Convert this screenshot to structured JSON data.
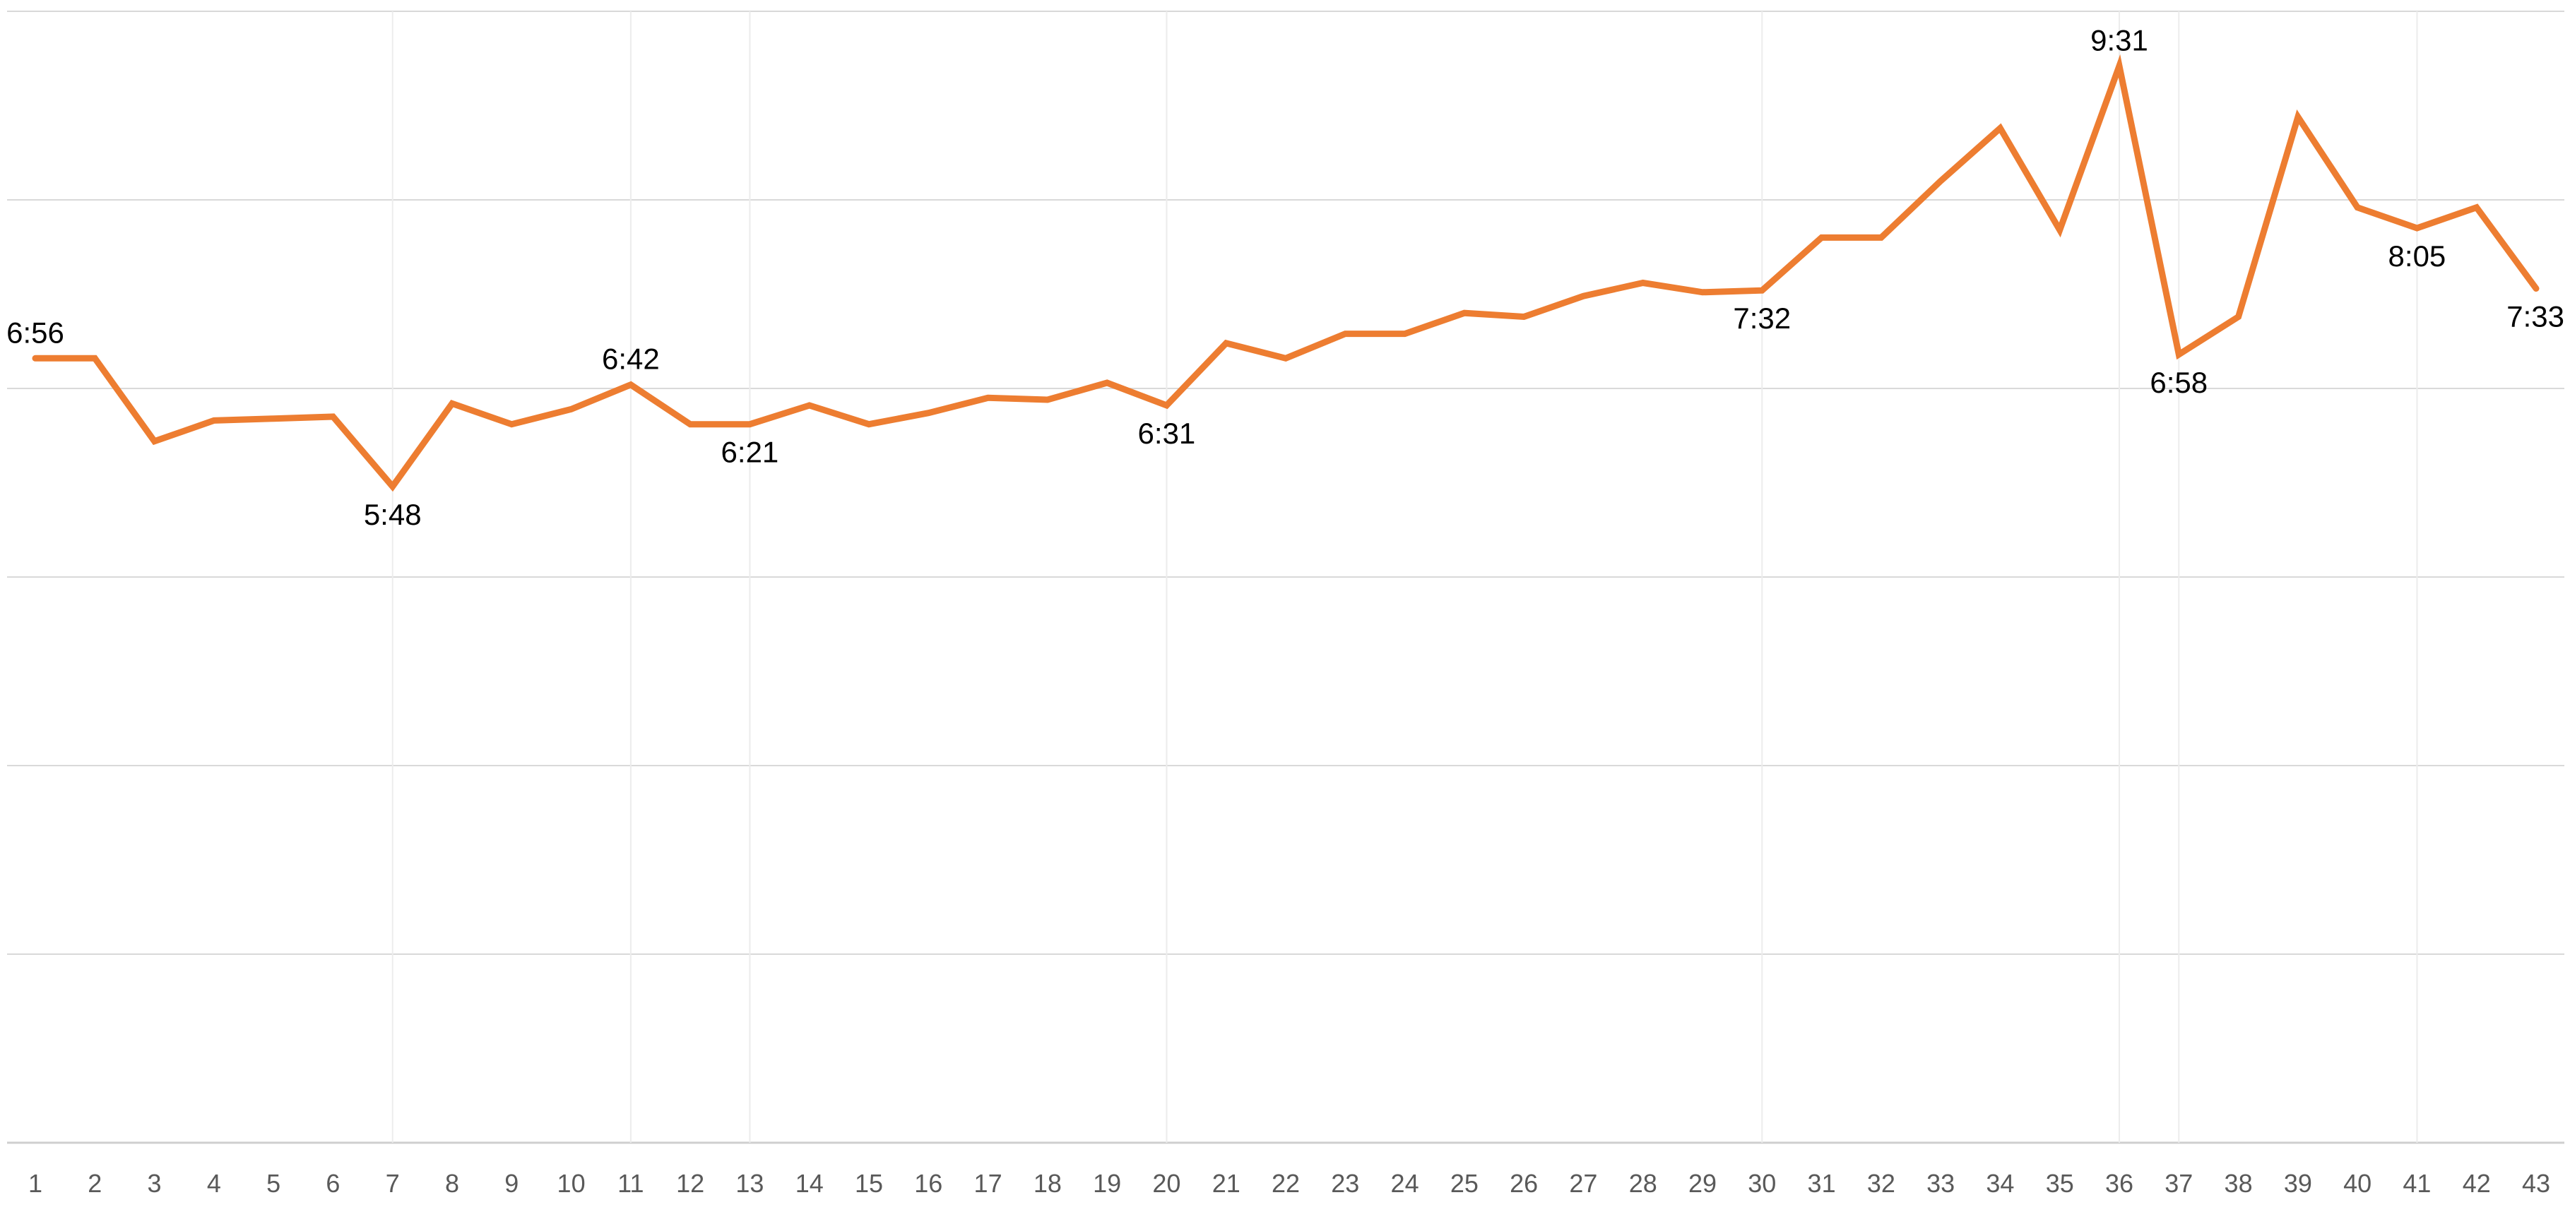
{
  "chart_data": {
    "type": "line",
    "title": "",
    "xlabel": "",
    "ylabel": "",
    "grid": true,
    "legend": "none",
    "x": [
      1,
      2,
      3,
      4,
      5,
      6,
      7,
      8,
      9,
      10,
      11,
      12,
      13,
      14,
      15,
      16,
      17,
      18,
      19,
      20,
      21,
      22,
      23,
      24,
      25,
      26,
      27,
      28,
      29,
      30,
      31,
      32,
      33,
      34,
      35,
      36,
      37,
      38,
      39,
      40,
      41,
      42,
      43
    ],
    "series": [
      {
        "color": "#ED7D31",
        "values": [
          416,
          416,
          372,
          383,
          384,
          385,
          348,
          392,
          381,
          389,
          402,
          381,
          381,
          391,
          381,
          387,
          395,
          394,
          403,
          391,
          424,
          416,
          429,
          429,
          440,
          438,
          449,
          456,
          451,
          452,
          480,
          480,
          510,
          538,
          484,
          571,
          418,
          438,
          544,
          496,
          485,
          496,
          453
        ]
      }
    ],
    "data_labels": [
      {
        "index": 0,
        "text": "6:56",
        "position": "above"
      },
      {
        "index": 6,
        "text": "5:48",
        "position": "below"
      },
      {
        "index": 10,
        "text": "6:42",
        "position": "above"
      },
      {
        "index": 12,
        "text": "6:21",
        "position": "below"
      },
      {
        "index": 19,
        "text": "6:31",
        "position": "below"
      },
      {
        "index": 29,
        "text": "7:32",
        "position": "below"
      },
      {
        "index": 35,
        "text": "9:31",
        "position": "above"
      },
      {
        "index": 36,
        "text": "6:58",
        "position": "below"
      },
      {
        "index": 40,
        "text": "8:05",
        "position": "below"
      },
      {
        "index": 42,
        "text": "7:33",
        "position": "below"
      }
    ],
    "ylim": [
      0,
      600
    ],
    "y_gridlines": [
      0,
      100,
      200,
      300,
      400,
      500,
      600
    ],
    "y_tick_labels_visible": false
  }
}
